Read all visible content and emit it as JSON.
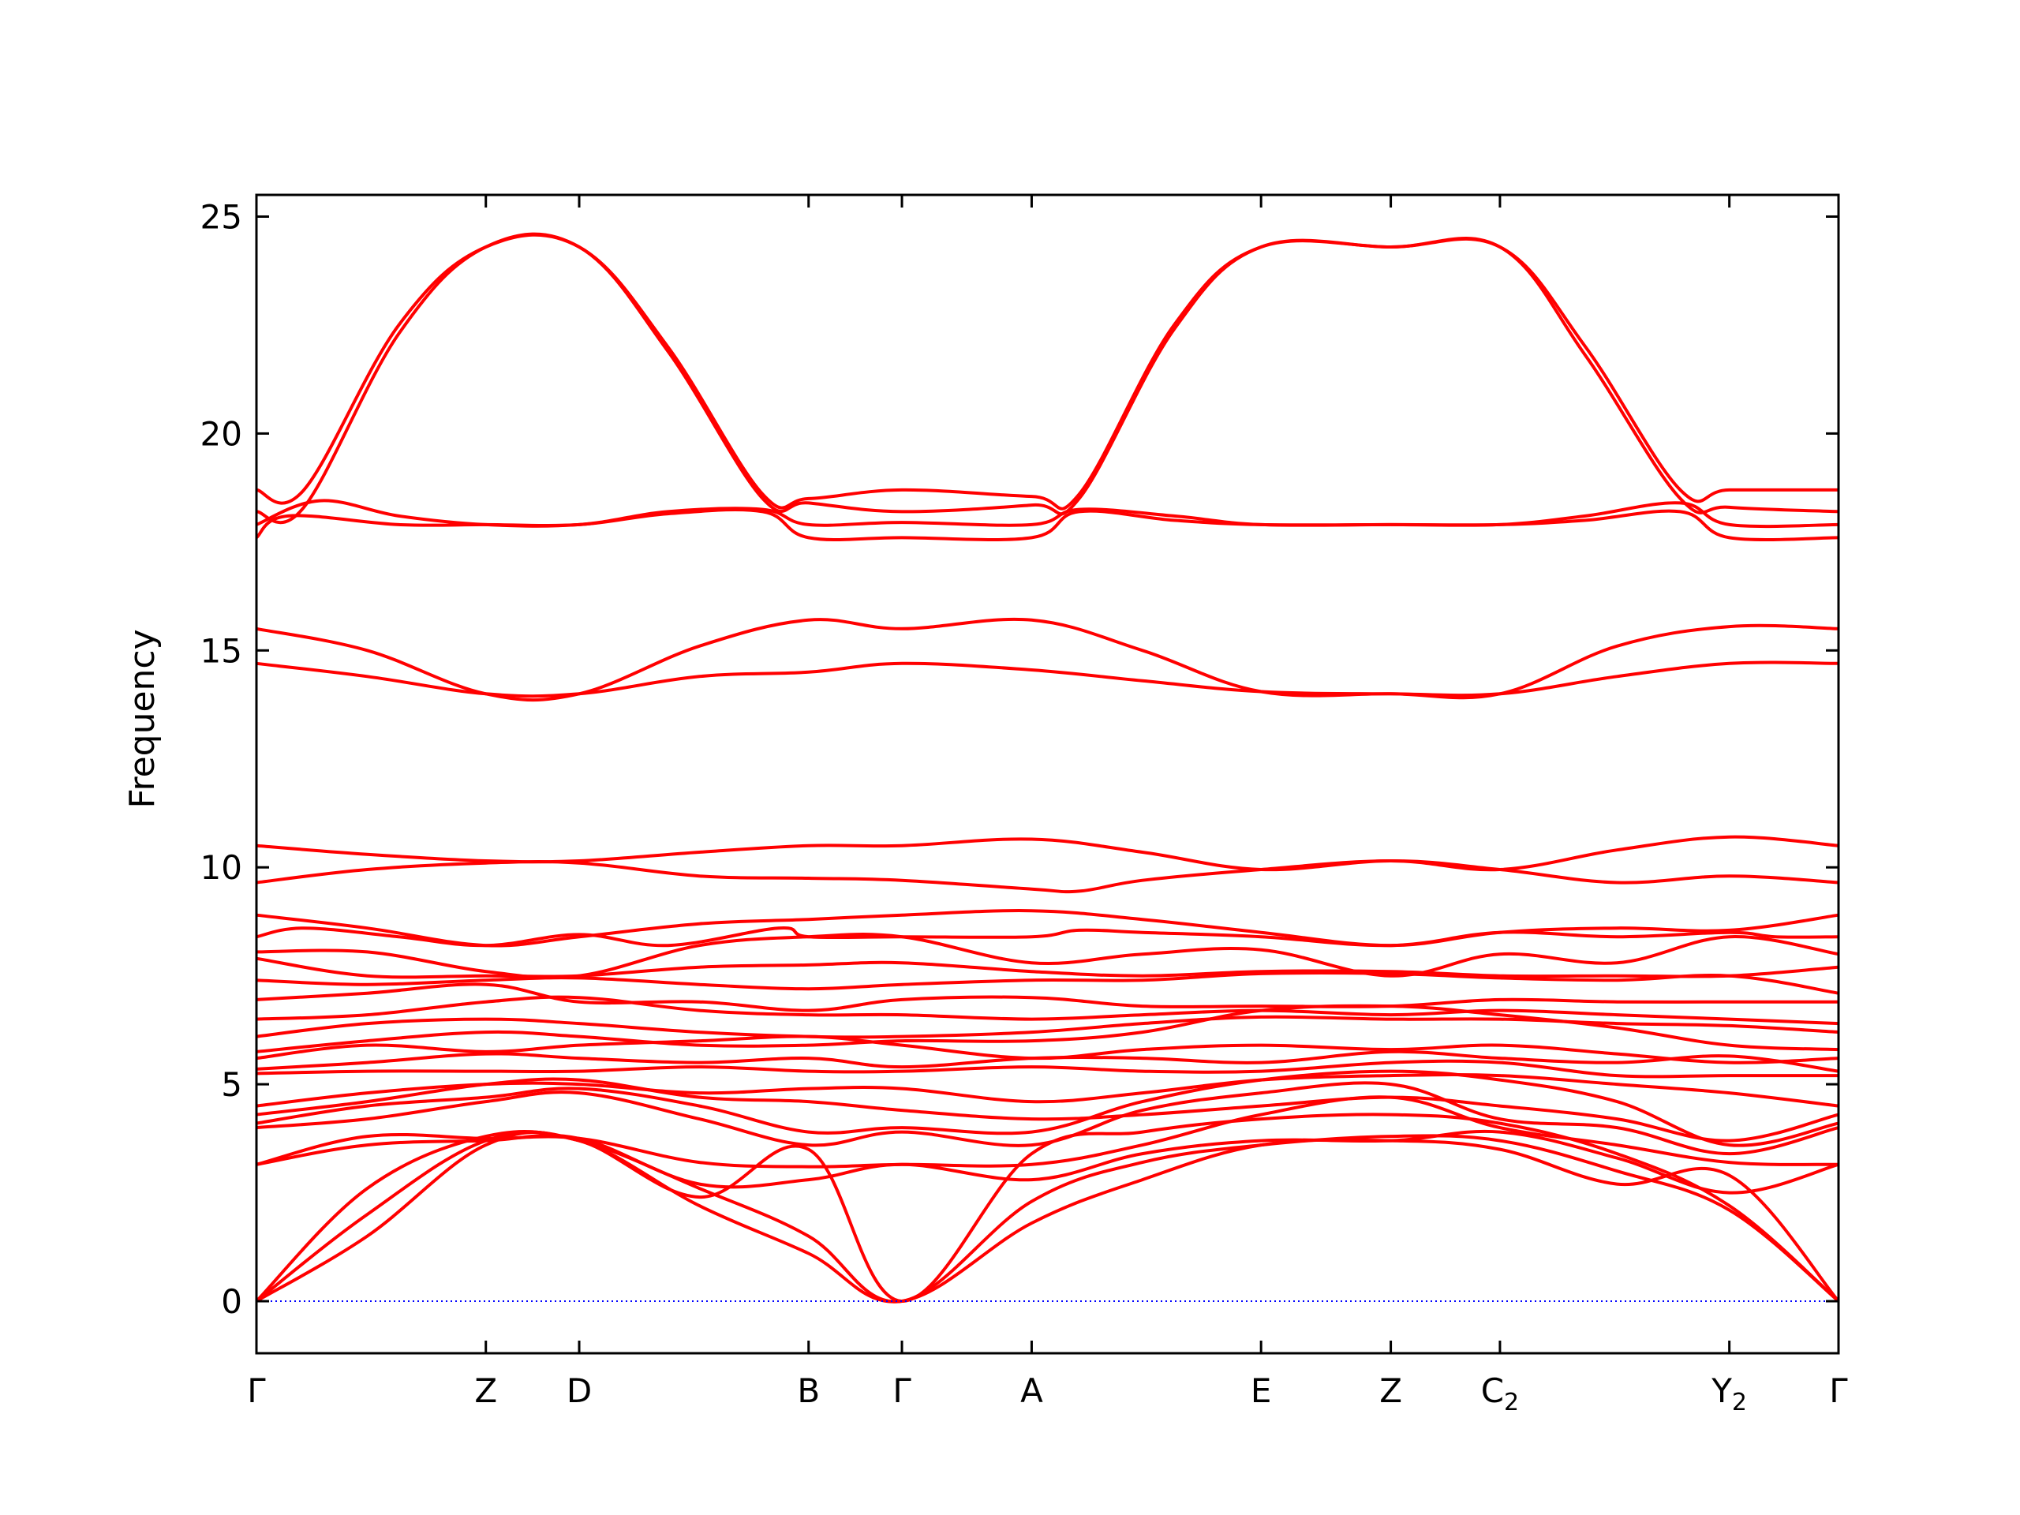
{
  "chart_data": {
    "type": "line",
    "title": "",
    "xlabel": "",
    "ylabel": "Frequency",
    "ylim": [
      -1.2,
      25.5
    ],
    "grid": false,
    "legend": "none",
    "line_color": "#ff0000",
    "zero_line_color": "#0000ff",
    "x_ticks": [
      {
        "x": 0.0,
        "label": "Γ",
        "sub": ""
      },
      {
        "x": 0.145,
        "label": "Z",
        "sub": ""
      },
      {
        "x": 0.204,
        "label": "D",
        "sub": ""
      },
      {
        "x": 0.349,
        "label": "B",
        "sub": ""
      },
      {
        "x": 0.408,
        "label": "Γ",
        "sub": ""
      },
      {
        "x": 0.49,
        "label": "A",
        "sub": ""
      },
      {
        "x": 0.635,
        "label": "E",
        "sub": ""
      },
      {
        "x": 0.717,
        "label": "Z",
        "sub": ""
      },
      {
        "x": 0.786,
        "label": "C",
        "sub": "2"
      },
      {
        "x": 0.931,
        "label": "Y",
        "sub": "2"
      },
      {
        "x": 1.0,
        "label": "Γ",
        "sub": ""
      }
    ],
    "y_ticks": [
      0,
      5,
      10,
      15,
      20,
      25
    ],
    "series": [
      {
        "x": [
          0.0,
          0.03,
          0.09,
          0.145,
          0.204,
          0.26,
          0.32,
          0.349,
          0.408,
          0.49,
          0.52,
          0.58,
          0.635,
          0.717,
          0.786,
          0.84,
          0.9,
          0.931,
          1.0
        ],
        "y": [
          18.7,
          18.7,
          22.5,
          24.3,
          24.3,
          22.0,
          18.6,
          18.5,
          18.7,
          18.55,
          18.6,
          22.5,
          24.3,
          24.3,
          24.3,
          22.0,
          18.7,
          18.7,
          18.7
        ]
      },
      {
        "x": [
          0.0,
          0.03,
          0.09,
          0.145,
          0.204,
          0.26,
          0.32,
          0.349,
          0.408,
          0.49,
          0.52,
          0.58,
          0.635,
          0.717,
          0.786,
          0.84,
          0.9,
          0.931,
          1.0
        ],
        "y": [
          18.2,
          18.3,
          22.3,
          24.3,
          24.3,
          21.9,
          18.5,
          18.4,
          18.2,
          18.35,
          18.5,
          22.4,
          24.3,
          24.3,
          24.3,
          21.8,
          18.5,
          18.3,
          18.2
        ]
      },
      {
        "x": [
          0.0,
          0.04,
          0.09,
          0.145,
          0.204,
          0.26,
          0.32,
          0.349,
          0.408,
          0.49,
          0.52,
          0.58,
          0.635,
          0.717,
          0.786,
          0.84,
          0.9,
          0.931,
          1.0
        ],
        "y": [
          17.9,
          18.45,
          18.1,
          17.9,
          17.9,
          18.2,
          18.25,
          17.9,
          17.95,
          17.9,
          18.25,
          18.1,
          17.9,
          17.9,
          17.9,
          18.1,
          18.4,
          17.9,
          17.9
        ]
      },
      {
        "x": [
          0.0,
          0.02,
          0.09,
          0.145,
          0.204,
          0.26,
          0.32,
          0.349,
          0.408,
          0.49,
          0.52,
          0.58,
          0.635,
          0.717,
          0.786,
          0.84,
          0.9,
          0.931,
          1.0
        ],
        "y": [
          17.6,
          18.1,
          17.9,
          17.9,
          17.9,
          18.15,
          18.2,
          17.6,
          17.6,
          17.6,
          18.2,
          18.0,
          17.9,
          17.9,
          17.9,
          18.0,
          18.2,
          17.6,
          17.6
        ]
      },
      {
        "x": [
          0.0,
          0.07,
          0.145,
          0.204,
          0.28,
          0.349,
          0.408,
          0.49,
          0.56,
          0.635,
          0.717,
          0.786,
          0.86,
          0.931,
          1.0
        ],
        "y": [
          15.5,
          15.0,
          14.0,
          14.0,
          15.1,
          15.7,
          15.5,
          15.7,
          15.0,
          14.05,
          14.0,
          14.0,
          15.1,
          15.55,
          15.5
        ]
      },
      {
        "x": [
          0.0,
          0.07,
          0.145,
          0.204,
          0.28,
          0.349,
          0.408,
          0.49,
          0.56,
          0.635,
          0.717,
          0.786,
          0.86,
          0.931,
          1.0
        ],
        "y": [
          14.7,
          14.4,
          14.0,
          14.0,
          14.4,
          14.5,
          14.7,
          14.55,
          14.3,
          14.05,
          14.0,
          14.0,
          14.4,
          14.7,
          14.7
        ]
      },
      {
        "x": [
          0.0,
          0.07,
          0.145,
          0.204,
          0.28,
          0.349,
          0.408,
          0.49,
          0.56,
          0.635,
          0.717,
          0.786,
          0.86,
          0.931,
          1.0
        ],
        "y": [
          10.5,
          10.3,
          10.15,
          10.15,
          10.35,
          10.5,
          10.5,
          10.65,
          10.35,
          9.95,
          10.15,
          9.95,
          10.4,
          10.7,
          10.5
        ]
      },
      {
        "x": [
          0.0,
          0.07,
          0.145,
          0.204,
          0.28,
          0.349,
          0.408,
          0.49,
          0.52,
          0.56,
          0.635,
          0.717,
          0.786,
          0.86,
          0.931,
          1.0
        ],
        "y": [
          9.65,
          9.95,
          10.1,
          10.1,
          9.8,
          9.75,
          9.7,
          9.5,
          9.45,
          9.7,
          9.95,
          10.15,
          9.95,
          9.65,
          9.8,
          9.65
        ]
      },
      {
        "x": [
          0.0,
          0.07,
          0.145,
          0.204,
          0.28,
          0.349,
          0.408,
          0.49,
          0.56,
          0.635,
          0.717,
          0.786,
          0.86,
          0.931,
          1.0
        ],
        "y": [
          8.9,
          8.6,
          8.2,
          8.4,
          8.7,
          8.8,
          8.9,
          9.0,
          8.8,
          8.5,
          8.2,
          8.5,
          8.6,
          8.55,
          8.9
        ]
      },
      {
        "x": [
          0.0,
          0.03,
          0.09,
          0.145,
          0.204,
          0.26,
          0.33,
          0.349,
          0.408,
          0.49,
          0.52,
          0.56,
          0.635,
          0.717,
          0.786,
          0.86,
          0.931,
          0.96,
          1.0
        ],
        "y": [
          8.4,
          8.6,
          8.4,
          8.2,
          8.45,
          8.2,
          8.6,
          8.4,
          8.4,
          8.4,
          8.55,
          8.5,
          8.4,
          8.2,
          8.5,
          8.4,
          8.5,
          8.4,
          8.4
        ]
      },
      {
        "x": [
          0.0,
          0.07,
          0.145,
          0.204,
          0.28,
          0.349,
          0.408,
          0.49,
          0.56,
          0.635,
          0.717,
          0.786,
          0.86,
          0.931,
          1.0
        ],
        "y": [
          8.05,
          8.05,
          7.6,
          7.5,
          8.2,
          8.4,
          8.4,
          7.8,
          8.0,
          8.1,
          7.5,
          8.0,
          7.8,
          8.4,
          8.0
        ]
      },
      {
        "x": [
          0.0,
          0.07,
          0.145,
          0.204,
          0.28,
          0.349,
          0.408,
          0.49,
          0.56,
          0.635,
          0.717,
          0.786,
          0.86,
          0.931,
          1.0
        ],
        "y": [
          7.9,
          7.5,
          7.5,
          7.5,
          7.7,
          7.75,
          7.8,
          7.6,
          7.5,
          7.6,
          7.6,
          7.5,
          7.5,
          7.5,
          7.7
        ]
      },
      {
        "x": [
          0.0,
          0.07,
          0.145,
          0.204,
          0.28,
          0.349,
          0.408,
          0.49,
          0.56,
          0.635,
          0.717,
          0.786,
          0.86,
          0.931,
          1.0
        ],
        "y": [
          7.4,
          7.3,
          7.4,
          7.45,
          7.3,
          7.2,
          7.3,
          7.4,
          7.4,
          7.55,
          7.55,
          7.45,
          7.4,
          7.5,
          7.1
        ]
      },
      {
        "x": [
          0.0,
          0.07,
          0.145,
          0.204,
          0.28,
          0.349,
          0.408,
          0.49,
          0.56,
          0.635,
          0.717,
          0.786,
          0.86,
          0.931,
          1.0
        ],
        "y": [
          6.95,
          7.1,
          7.3,
          6.9,
          6.9,
          6.7,
          6.95,
          7.0,
          6.8,
          6.8,
          6.8,
          6.95,
          6.9,
          6.9,
          6.9
        ]
      },
      {
        "x": [
          0.0,
          0.07,
          0.145,
          0.204,
          0.28,
          0.349,
          0.408,
          0.49,
          0.56,
          0.635,
          0.717,
          0.786,
          0.86,
          0.931,
          1.0
        ],
        "y": [
          6.5,
          6.6,
          6.9,
          7.0,
          6.7,
          6.6,
          6.6,
          6.5,
          6.6,
          6.7,
          6.6,
          6.7,
          6.6,
          6.5,
          6.4
        ]
      },
      {
        "x": [
          0.0,
          0.07,
          0.145,
          0.204,
          0.28,
          0.349,
          0.408,
          0.49,
          0.56,
          0.635,
          0.717,
          0.786,
          0.86,
          0.931,
          1.0
        ],
        "y": [
          6.1,
          6.4,
          6.5,
          6.4,
          6.2,
          6.1,
          6.1,
          6.2,
          6.4,
          6.55,
          6.5,
          6.5,
          6.4,
          6.35,
          6.2
        ]
      },
      {
        "x": [
          0.0,
          0.07,
          0.145,
          0.204,
          0.28,
          0.349,
          0.408,
          0.49,
          0.56,
          0.635,
          0.717,
          0.786,
          0.86,
          0.931,
          1.0
        ],
        "y": [
          5.75,
          6.0,
          6.2,
          6.1,
          5.9,
          5.9,
          6.0,
          6.0,
          6.2,
          6.7,
          6.8,
          6.6,
          6.3,
          5.9,
          5.8
        ]
      },
      {
        "x": [
          0.0,
          0.07,
          0.145,
          0.204,
          0.28,
          0.349,
          0.408,
          0.49,
          0.56,
          0.635,
          0.717,
          0.786,
          0.86,
          0.931,
          1.0
        ],
        "y": [
          5.6,
          5.9,
          5.75,
          5.9,
          6.0,
          6.1,
          5.9,
          5.6,
          5.8,
          5.9,
          5.8,
          5.9,
          5.7,
          5.5,
          5.6
        ]
      },
      {
        "x": [
          0.0,
          0.07,
          0.145,
          0.204,
          0.28,
          0.349,
          0.408,
          0.49,
          0.56,
          0.635,
          0.717,
          0.786,
          0.86,
          0.931,
          1.0
        ],
        "y": [
          5.35,
          5.5,
          5.7,
          5.6,
          5.5,
          5.6,
          5.4,
          5.6,
          5.6,
          5.5,
          5.75,
          5.6,
          5.5,
          5.65,
          5.3
        ]
      },
      {
        "x": [
          0.0,
          0.07,
          0.145,
          0.204,
          0.28,
          0.349,
          0.408,
          0.49,
          0.56,
          0.635,
          0.717,
          0.786,
          0.86,
          0.931,
          1.0
        ],
        "y": [
          5.25,
          5.3,
          5.3,
          5.3,
          5.4,
          5.3,
          5.3,
          5.4,
          5.3,
          5.3,
          5.5,
          5.5,
          5.2,
          5.2,
          5.2
        ]
      },
      {
        "x": [
          0.0,
          0.07,
          0.145,
          0.204,
          0.28,
          0.349,
          0.408,
          0.49,
          0.56,
          0.635,
          0.717,
          0.786,
          0.86,
          0.931,
          1.0
        ],
        "y": [
          4.5,
          4.8,
          5.0,
          5.0,
          4.8,
          4.9,
          4.9,
          4.6,
          4.8,
          5.1,
          5.2,
          5.2,
          5.0,
          4.8,
          4.5
        ]
      },
      {
        "x": [
          0.0,
          0.07,
          0.145,
          0.204,
          0.28,
          0.349,
          0.408,
          0.49,
          0.56,
          0.635,
          0.717,
          0.786,
          0.86,
          0.931,
          1.0
        ],
        "y": [
          4.3,
          4.6,
          5.0,
          5.1,
          4.7,
          4.6,
          4.4,
          4.2,
          4.3,
          4.5,
          4.7,
          4.5,
          4.2,
          3.7,
          4.3
        ]
      },
      {
        "x": [
          0.0,
          0.07,
          0.145,
          0.204,
          0.28,
          0.349,
          0.408,
          0.49,
          0.56,
          0.635,
          0.717,
          0.786,
          0.86,
          0.931,
          1.0
        ],
        "y": [
          4.1,
          4.5,
          4.7,
          4.9,
          4.5,
          3.9,
          4.0,
          3.9,
          4.6,
          5.1,
          5.3,
          5.1,
          4.6,
          3.6,
          4.1
        ]
      },
      {
        "x": [
          0.0,
          0.07,
          0.145,
          0.204,
          0.28,
          0.349,
          0.408,
          0.49,
          0.56,
          0.635,
          0.717,
          0.786,
          0.86,
          0.931,
          1.0
        ],
        "y": [
          4.0,
          4.2,
          4.6,
          4.8,
          4.2,
          3.6,
          3.9,
          3.6,
          4.4,
          4.8,
          5.0,
          4.2,
          4.0,
          3.4,
          4.0
        ]
      },
      {
        "x": [
          0.0,
          0.07,
          0.145,
          0.204,
          0.28,
          0.349,
          0.408,
          0.49,
          0.56,
          0.635,
          0.717,
          0.786,
          0.86,
          0.931,
          1.0
        ],
        "y": [
          3.15,
          3.8,
          3.75,
          3.75,
          3.2,
          3.1,
          3.15,
          3.15,
          3.6,
          4.3,
          4.7,
          4.0,
          3.6,
          3.2,
          3.15
        ]
      },
      {
        "x": [
          0.0,
          0.07,
          0.145,
          0.204,
          0.28,
          0.349,
          0.408,
          0.49,
          0.56,
          0.635,
          0.717,
          0.786,
          0.86,
          0.931,
          1.0
        ],
        "y": [
          3.15,
          3.6,
          3.7,
          3.75,
          2.7,
          2.8,
          3.15,
          2.8,
          3.4,
          3.7,
          3.7,
          3.9,
          3.3,
          2.5,
          3.15
        ]
      },
      {
        "x": [
          0.0,
          0.07,
          0.145,
          0.204,
          0.28,
          0.349,
          0.408,
          0.49,
          0.56,
          0.635,
          0.717,
          0.786,
          0.86,
          0.931,
          1.0
        ],
        "y": [
          0.0,
          2.6,
          3.8,
          3.7,
          2.6,
          1.5,
          0.0,
          2.3,
          3.2,
          3.6,
          3.8,
          3.7,
          3.0,
          2.1,
          0.0
        ]
      },
      {
        "x": [
          0.0,
          0.07,
          0.145,
          0.204,
          0.28,
          0.349,
          0.408,
          0.49,
          0.56,
          0.635,
          0.717,
          0.786,
          0.86,
          0.931,
          1.0
        ],
        "y": [
          0.0,
          2.0,
          3.7,
          3.7,
          2.4,
          3.5,
          0.0,
          3.4,
          3.9,
          4.2,
          4.3,
          4.1,
          3.4,
          2.2,
          0.0
        ]
      },
      {
        "x": [
          0.0,
          0.07,
          0.145,
          0.204,
          0.28,
          0.349,
          0.408,
          0.49,
          0.56,
          0.635,
          0.717,
          0.786,
          0.86,
          0.931,
          1.0
        ],
        "y": [
          0.0,
          1.5,
          3.6,
          3.7,
          2.2,
          1.1,
          0.0,
          1.8,
          2.8,
          3.6,
          3.7,
          3.5,
          2.7,
          2.9,
          0.0
        ]
      }
    ]
  }
}
